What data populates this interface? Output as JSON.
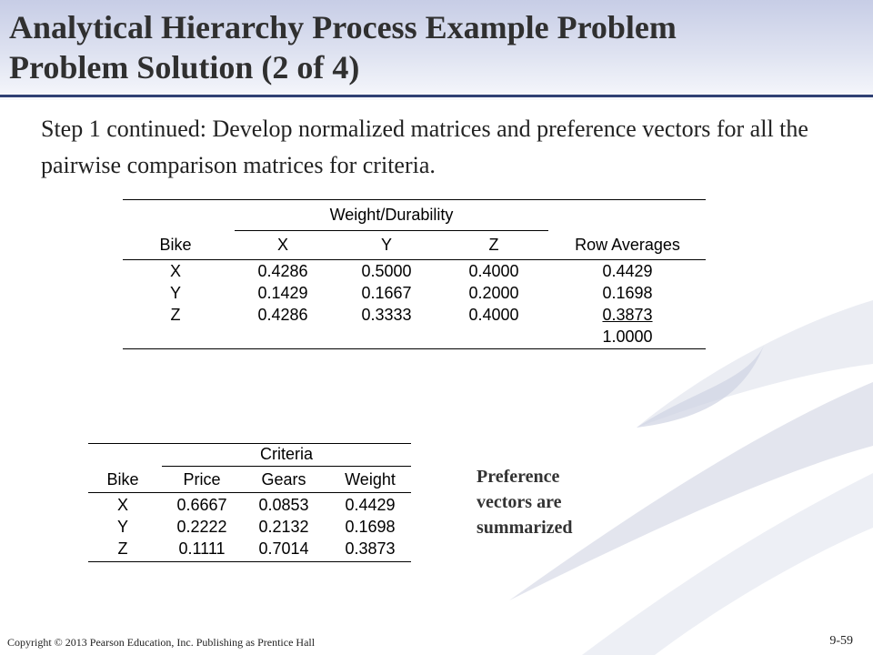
{
  "slide": {
    "title_line1": "Analytical Hierarchy Process Example Problem",
    "title_line2": "Problem Solution (2 of  4)",
    "subtitle": "Step 1 continued:  Develop normalized matrices and preference vectors for all the pairwise comparison matrices for criteria.",
    "note_line1": "Preference",
    "note_line2": "vectors are",
    "note_line3": "summarized",
    "copyright": "Copyright © 2013 Pearson Education, Inc. Publishing as Prentice Hall",
    "page_number": "9-59"
  },
  "table1": {
    "group_header": "Weight/Durability",
    "columns": [
      "Bike",
      "X",
      "Y",
      "Z",
      "Row Averages"
    ],
    "rows": [
      [
        "X",
        "0.4286",
        "0.5000",
        "0.4000",
        "0.4429"
      ],
      [
        "Y",
        "0.1429",
        "0.1667",
        "0.2000",
        "0.1698"
      ],
      [
        "Z",
        "0.4286",
        "0.3333",
        "0.4000",
        "0.3873"
      ]
    ],
    "total": "1.0000"
  },
  "table2": {
    "group_header": "Criteria",
    "columns": [
      "Bike",
      "Price",
      "Gears",
      "Weight"
    ],
    "rows": [
      [
        "X",
        "0.6667",
        "0.0853",
        "0.4429"
      ],
      [
        "Y",
        "0.2222",
        "0.2132",
        "0.1698"
      ],
      [
        "Z",
        "0.1111",
        "0.7014",
        "0.3873"
      ]
    ]
  },
  "colors": {
    "title_band": "#c7cde6",
    "title_rule": "#2e3f73",
    "swoosh": "#d6d9e6"
  }
}
